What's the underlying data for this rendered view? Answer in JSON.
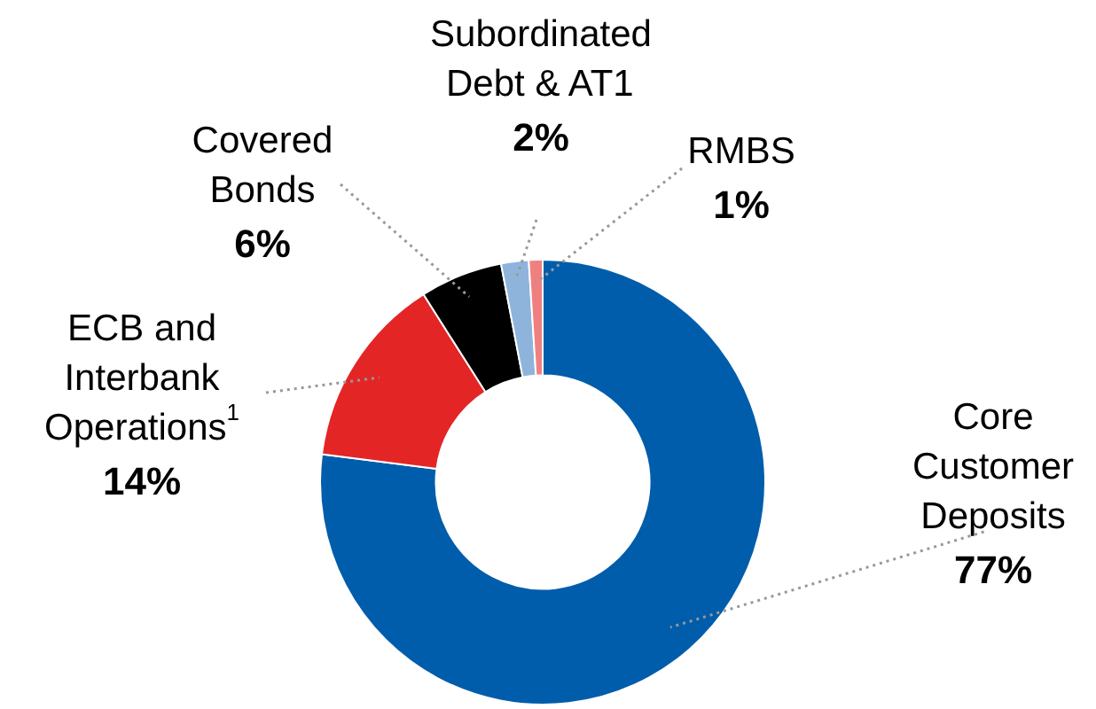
{
  "chart_data": {
    "type": "donut",
    "categories": [
      "Core\nCustomer\nDeposits",
      "ECB and\nInterbank\nOperations$^{1}$",
      "Covered\nBonds",
      "Subordinated\nDebt & AT1",
      "RMBS"
    ],
    "values": [
      77,
      14,
      6,
      2,
      1
    ],
    "colors": [
      "#005dab",
      "#e32526",
      "#000000",
      "#8fb4dc",
      "#f08080"
    ],
    "value_labels": [
      "77%",
      "14%",
      "6%",
      "2%",
      "1%"
    ],
    "legend": false
  }
}
